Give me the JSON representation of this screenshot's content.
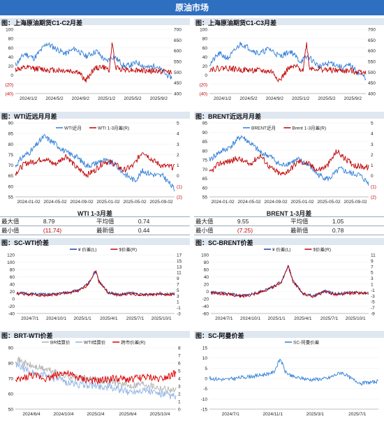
{
  "banner": {
    "title": "原油市场"
  },
  "charts": [
    {
      "id": "c1",
      "title": "图：上海原油期货C1-C2月差",
      "type": "line",
      "ylim": [
        -40,
        100
      ],
      "yticks": [
        "100",
        "80",
        "60",
        "40",
        "20",
        "0",
        "(20)",
        "(40)"
      ],
      "y2lim": [
        350,
        700
      ],
      "y2ticks": [
        "700",
        "650",
        "600",
        "550",
        "500",
        "450",
        "400"
      ],
      "xticks": [
        "2024/1/2",
        "2024/5/2",
        "2024/9/2",
        "2025/1/2",
        "2025/5/2",
        "2025/9/2"
      ],
      "series": [
        {
          "name": "",
          "color": "#2f7ed8",
          "axis": "left",
          "seed": 11,
          "shape": "c1blue"
        },
        {
          "name": "",
          "color": "#c00000",
          "axis": "right",
          "seed": 12,
          "shape": "c1red"
        }
      ],
      "legend": []
    },
    {
      "id": "c2",
      "title": "图：上海原油期货C1-C3月差",
      "type": "line",
      "ylim": [
        -40,
        100
      ],
      "yticks": [
        "100",
        "80",
        "60",
        "40",
        "20",
        "0",
        "(20)",
        "(40)"
      ],
      "y2lim": [
        350,
        700
      ],
      "y2ticks": [
        "700",
        "650",
        "600",
        "550",
        "500",
        "450",
        "400"
      ],
      "xticks": [
        "2024/1/2",
        "2024/5/2",
        "2024/9/2",
        "2025/1/2",
        "2025/5/2",
        "2025/9/2"
      ],
      "series": [
        {
          "name": "",
          "color": "#2f7ed8",
          "axis": "left",
          "seed": 21,
          "shape": "c1blue"
        },
        {
          "name": "",
          "color": "#c00000",
          "axis": "right",
          "seed": 22,
          "shape": "c1red"
        }
      ],
      "legend": []
    },
    {
      "id": "c3",
      "title": "图：WTI近远月月差",
      "type": "line",
      "ylim": [
        55,
        90
      ],
      "yticks": [
        "90",
        "85",
        "80",
        "75",
        "70",
        "65",
        "60",
        "55"
      ],
      "y2lim": [
        -2,
        5
      ],
      "y2ticks": [
        "5",
        "4",
        "3",
        "2",
        "1",
        "0",
        "(1)",
        "(2)"
      ],
      "xticks": [
        "2024-01-02",
        "2024-05-02",
        "2024-09-02",
        "2025-01-02",
        "2025-05-02",
        "2025-09-02"
      ],
      "series": [
        {
          "name": "WTI近月",
          "color": "#2f7ed8",
          "axis": "left",
          "seed": 31,
          "shape": "wtiblue"
        },
        {
          "name": "WTI 1-3月差(R)",
          "color": "#c00000",
          "axis": "right",
          "seed": 32,
          "shape": "wtired"
        }
      ],
      "legend": [
        "WTI近月",
        "WTI 1-3月差(R)"
      ]
    },
    {
      "id": "c4",
      "title": "图：BRENT近远月月差",
      "type": "line",
      "ylim": [
        55,
        95
      ],
      "yticks": [
        "95",
        "90",
        "85",
        "80",
        "75",
        "70",
        "65",
        "60",
        "55"
      ],
      "y2lim": [
        -2,
        5
      ],
      "y2ticks": [
        "5",
        "4",
        "3",
        "2",
        "1",
        "0",
        "(1)",
        "(2)"
      ],
      "xticks": [
        "2024-01-02",
        "2024-05-02",
        "2024-09-02",
        "2025-01-02",
        "2025-05-02",
        "2025-09-02"
      ],
      "series": [
        {
          "name": "BRENT近月",
          "color": "#2f7ed8",
          "axis": "left",
          "seed": 41,
          "shape": "brentblue"
        },
        {
          "name": "Brent 1-3月差(R)",
          "color": "#c00000",
          "axis": "right",
          "seed": 42,
          "shape": "wtired"
        }
      ],
      "legend": [
        "BRENT近月",
        "Brent 1-3月差(R)"
      ]
    },
    {
      "id": "c5",
      "title": "图：SC-WTI价差",
      "type": "line",
      "ylim": [
        -40,
        140
      ],
      "yticks": [
        "120",
        "100",
        "80",
        "60",
        "40",
        "20",
        "0",
        "-20",
        "-40"
      ],
      "y2lim": [
        -3,
        17
      ],
      "y2ticks": [
        "17",
        "15",
        "13",
        "11",
        "9",
        "7",
        "5",
        "3",
        "1",
        "-1",
        "-3"
      ],
      "xticks": [
        "2024/7/1",
        "2024/10/1",
        "2025/1/1",
        "2025/4/1",
        "2025/7/1",
        "2025/10/1"
      ],
      "series": [
        {
          "name": "¥ 价差(L)",
          "color": "#1f3fa0",
          "axis": "left",
          "seed": 51,
          "shape": "scwti"
        },
        {
          "name": "$价差(R)",
          "color": "#c00000",
          "axis": "right",
          "seed": 52,
          "shape": "scwti2"
        }
      ],
      "legend": [
        "¥ 价差(L)",
        "$价差(R)"
      ]
    },
    {
      "id": "c6",
      "title": "图：SC-BRENT价差",
      "type": "line",
      "ylim": [
        -60,
        100
      ],
      "yticks": [
        "100",
        "80",
        "60",
        "40",
        "20",
        "0",
        "-20",
        "-40",
        "-60"
      ],
      "y2lim": [
        -9,
        13
      ],
      "y2ticks": [
        "11",
        "9",
        "7",
        "5",
        "3",
        "1",
        "-1",
        "-3",
        "-5",
        "-7",
        "-9"
      ],
      "xticks": [
        "2024/7/1",
        "2024/10/1",
        "2025/1/1",
        "2025/4/1",
        "2025/7/1",
        "2025/10/1"
      ],
      "series": [
        {
          "name": "¥ 价差(L)",
          "color": "#1f3fa0",
          "axis": "left",
          "seed": 61,
          "shape": "scbrent"
        },
        {
          "name": "$价差(R)",
          "color": "#c00000",
          "axis": "right",
          "seed": 62,
          "shape": "scbrent2"
        }
      ],
      "legend": [
        "¥ 价差(L)",
        "$价差(R)"
      ]
    },
    {
      "id": "c7",
      "title": "图：BRT-WTI价差",
      "type": "line",
      "ylim": [
        50,
        90
      ],
      "yticks": [
        "90",
        "80",
        "70",
        "60",
        "50"
      ],
      "y2lim": [
        0,
        8
      ],
      "y2ticks": [
        "8",
        "7",
        "6",
        "5",
        "4",
        "3",
        "2",
        "1",
        "0"
      ],
      "xticks": [
        "2024/6/4",
        "2024/10/4",
        "2025/2/4",
        "2025/6/4",
        "2025/10/4"
      ],
      "series": [
        {
          "name": "BR结算价",
          "color": "#b0b0b0",
          "axis": "left",
          "seed": 71,
          "shape": "brt"
        },
        {
          "name": "WTI结算价",
          "color": "#8fb4e6",
          "axis": "left",
          "seed": 72,
          "shape": "wti7"
        },
        {
          "name": "跨市价差(R)",
          "color": "#e00000",
          "axis": "right",
          "seed": 73,
          "shape": "spread7"
        }
      ],
      "legend": [
        "BR结算价",
        "WTI结算价",
        "跨市价差(R)"
      ]
    },
    {
      "id": "c8",
      "title": "图：SC-阿曼价差",
      "type": "line",
      "ylim": [
        -15,
        15
      ],
      "yticks": [
        "15",
        "10",
        "5",
        "0",
        "-5",
        "-10",
        "-15"
      ],
      "y2lim": null,
      "y2ticks": [],
      "xticks": [
        "2024/7/1",
        "2024/11/1",
        "2025/3/1",
        "2025/7/1"
      ],
      "series": [
        {
          "name": "SC-阿曼价差",
          "color": "#2f7ed8",
          "axis": "left",
          "seed": 81,
          "shape": "oman"
        }
      ],
      "legend": [
        "SC-阿曼价差"
      ]
    }
  ],
  "stats": [
    {
      "title": "WTI 1-3月差",
      "rows": [
        {
          "l1": "最大值",
          "v1": "8.79",
          "l2": "平均值",
          "v2": "0.74"
        },
        {
          "l1": "最小值",
          "v1": "(11.74)",
          "l2": "最新值",
          "v2": "0.44"
        }
      ]
    },
    {
      "title": "BRENT 1-3月差",
      "rows": [
        {
          "l1": "最大值",
          "v1": "9.55",
          "l2": "平均值",
          "v2": "1.05"
        },
        {
          "l1": "最小值",
          "v1": "(7.25)",
          "l2": "最新值",
          "v2": "0.78"
        }
      ]
    }
  ]
}
